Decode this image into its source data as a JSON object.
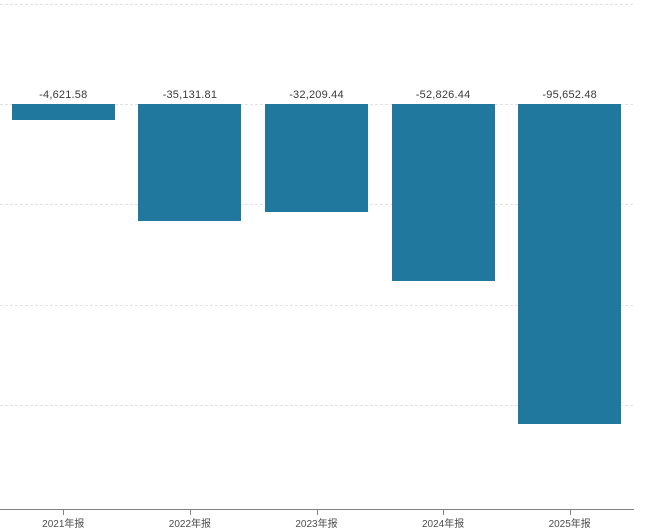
{
  "chart_data": {
    "type": "bar",
    "title": "",
    "xlabel": "",
    "ylabel": "",
    "categories": [
      "2021年报",
      "2022年报",
      "2023年报",
      "2024年报",
      "2025年报"
    ],
    "values": [
      -4621.58,
      -35131.81,
      -32209.44,
      -52826.44,
      -95652.48
    ],
    "value_labels": [
      "-4,621.58",
      "-35,131.81",
      "-32,209.44",
      "-52,826.44",
      "-95,652.48"
    ],
    "series_name": "",
    "ylim": [
      -121500,
      30000
    ],
    "gridline_values": [
      30000,
      0,
      -30000,
      -60000,
      -90000
    ],
    "grid": true,
    "legend_position": "none",
    "bar_color": "#20789F",
    "gridline_color": "#e2e2e2",
    "axis_color": "#828282",
    "value_label_color": "#3a3a3a",
    "x_label_color": "#4d4d4d"
  }
}
